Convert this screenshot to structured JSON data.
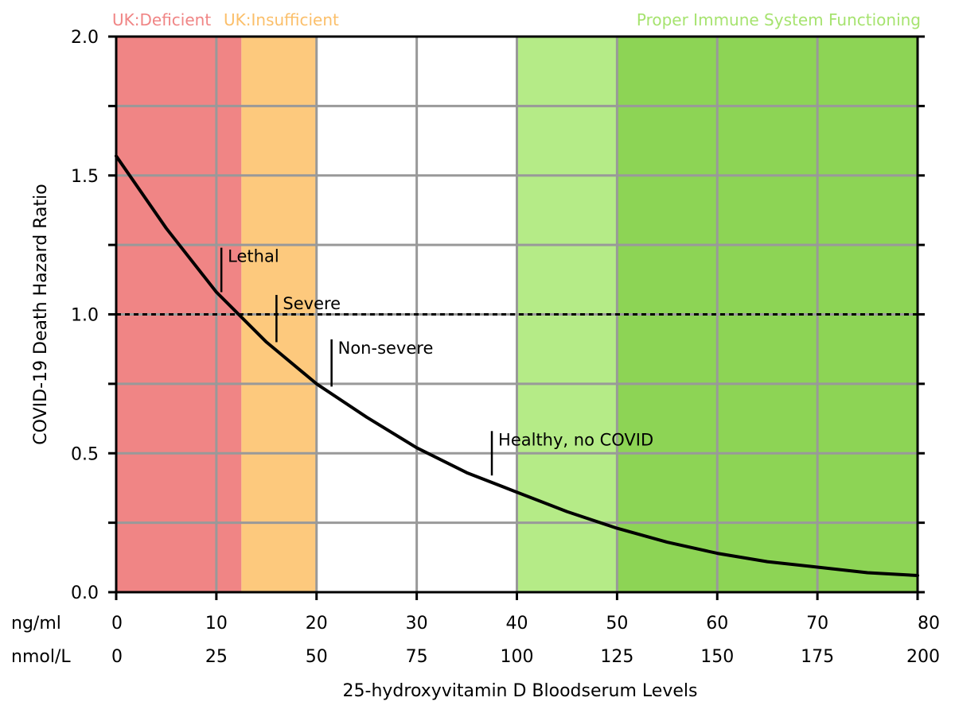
{
  "chart_data": {
    "type": "line",
    "ylabel": "COVID-19 Death Hazard Ratio",
    "xlabel": "25-hydroxyvitamin D Bloodserum Levels",
    "xlim": [
      0,
      80
    ],
    "ylim": [
      0,
      2.0
    ],
    "x_ticks": [
      0,
      10,
      20,
      30,
      40,
      50,
      60,
      70,
      80
    ],
    "y_ticks": [
      0.0,
      0.25,
      0.5,
      0.75,
      1.0,
      1.25,
      1.5,
      1.75,
      2.0
    ],
    "y_tick_labels": [
      "0.0",
      "",
      "0.5",
      "",
      "1.0",
      "",
      "1.5",
      "",
      "2.0"
    ],
    "x_axis_rows": [
      {
        "unit": "ng/ml",
        "labels": [
          "0",
          "10",
          "20",
          "30",
          "40",
          "50",
          "60",
          "70",
          "80"
        ]
      },
      {
        "unit": "nmol/L",
        "labels": [
          "0",
          "25",
          "50",
          "75",
          "100",
          "125",
          "150",
          "175",
          "200"
        ]
      }
    ],
    "grid": true,
    "bands": [
      {
        "x0": 0,
        "x1": 12.5,
        "color": "#f08585"
      },
      {
        "x0": 12.5,
        "x1": 20,
        "color": "#fdc97d"
      },
      {
        "x0": 20,
        "x1": 40,
        "color": "#ffffff"
      },
      {
        "x0": 40,
        "x1": 50,
        "color": "#b5eb87"
      },
      {
        "x0": 50,
        "x1": 80,
        "color": "#8dd455"
      }
    ],
    "zone_labels": [
      {
        "text": "UK:Deficient",
        "color": "#f08585",
        "anchor": "start"
      },
      {
        "text": "UK:Insufficient",
        "color": "#fbbf6a",
        "anchor": "start"
      },
      {
        "text": "Proper Immune System Functioning",
        "color": "#a6e36f",
        "anchor": "end"
      }
    ],
    "reference_line": {
      "y": 1.0,
      "style": "dotted"
    },
    "series": [
      {
        "x": [
          0,
          5,
          10,
          15,
          20,
          25,
          30,
          35,
          40,
          45,
          50,
          55,
          60,
          65,
          70,
          75,
          80
        ],
        "y": [
          1.57,
          1.31,
          1.08,
          0.9,
          0.75,
          0.63,
          0.52,
          0.43,
          0.36,
          0.29,
          0.23,
          0.18,
          0.14,
          0.11,
          0.09,
          0.07,
          0.06
        ],
        "color": "#000000"
      }
    ],
    "annotations": [
      {
        "text": "Lethal",
        "x": 10.5,
        "y_top": 1.24,
        "y_bottom": 1.08
      },
      {
        "text": "Severe",
        "x": 16.0,
        "y_top": 1.07,
        "y_bottom": 0.9
      },
      {
        "text": "Non-severe",
        "x": 21.5,
        "y_top": 0.91,
        "y_bottom": 0.74
      },
      {
        "text": "Healthy, no COVID",
        "x": 37.5,
        "y_top": 0.58,
        "y_bottom": 0.42
      }
    ]
  }
}
